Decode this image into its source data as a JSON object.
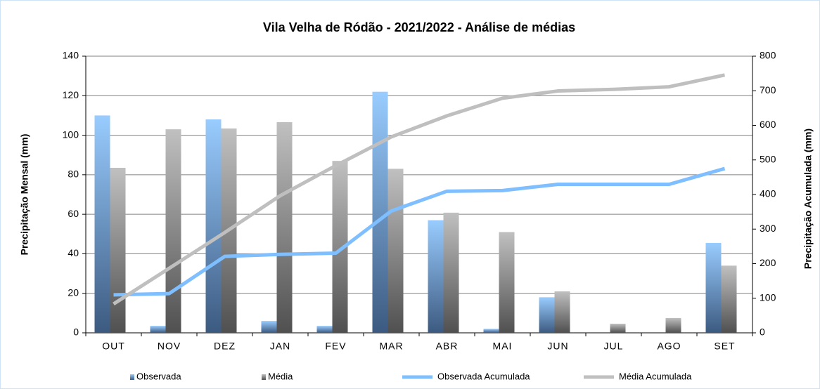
{
  "chart_data": {
    "type": "bar_line",
    "title": "Vila Velha de Ródão - 2021/2022  - Análise de médias",
    "y_label": "Precipitação Mensal (mm)",
    "y2_label": "Precipitação Acumulada (mm)",
    "categories": [
      "OUT",
      "NOV",
      "DEZ",
      "JAN",
      "FEV",
      "MAR",
      "ABR",
      "MAI",
      "JUN",
      "JUL",
      "AGO",
      "SET"
    ],
    "series": [
      {
        "name": "Observada",
        "type": "bar",
        "color": "#99ccff",
        "values": [
          110,
          3.5,
          108,
          6,
          3.5,
          122,
          57,
          2,
          18,
          0,
          0,
          45.5
        ]
      },
      {
        "name": "Média",
        "type": "bar",
        "color": "#c0c0c0",
        "values": [
          83.5,
          103,
          103.4,
          106.6,
          87,
          83,
          60.8,
          51,
          21,
          4.6,
          7.5,
          34
        ]
      },
      {
        "name": "Observada Acumulada",
        "type": "line",
        "axis": "y2",
        "color": "#7fbfff",
        "values": [
          110,
          113.5,
          221,
          227,
          230.5,
          352.5,
          409.5,
          411.5,
          429.5,
          429.5,
          429.5,
          475
        ]
      },
      {
        "name": "Média Acumulada",
        "type": "line",
        "axis": "y2",
        "color": "#bfbfbf",
        "values": [
          83.5,
          186.5,
          290,
          396.6,
          483.6,
          566.6,
          627.4,
          678.4,
          699.4,
          704,
          711.5,
          745.5
        ]
      }
    ],
    "ylim": [
      0,
      140
    ],
    "yticks": [
      0,
      20,
      40,
      60,
      80,
      100,
      120,
      140
    ],
    "y2lim": [
      0,
      800
    ],
    "y2ticks": [
      0,
      100,
      200,
      300,
      400,
      500,
      600,
      700,
      800
    ],
    "grid": true
  }
}
